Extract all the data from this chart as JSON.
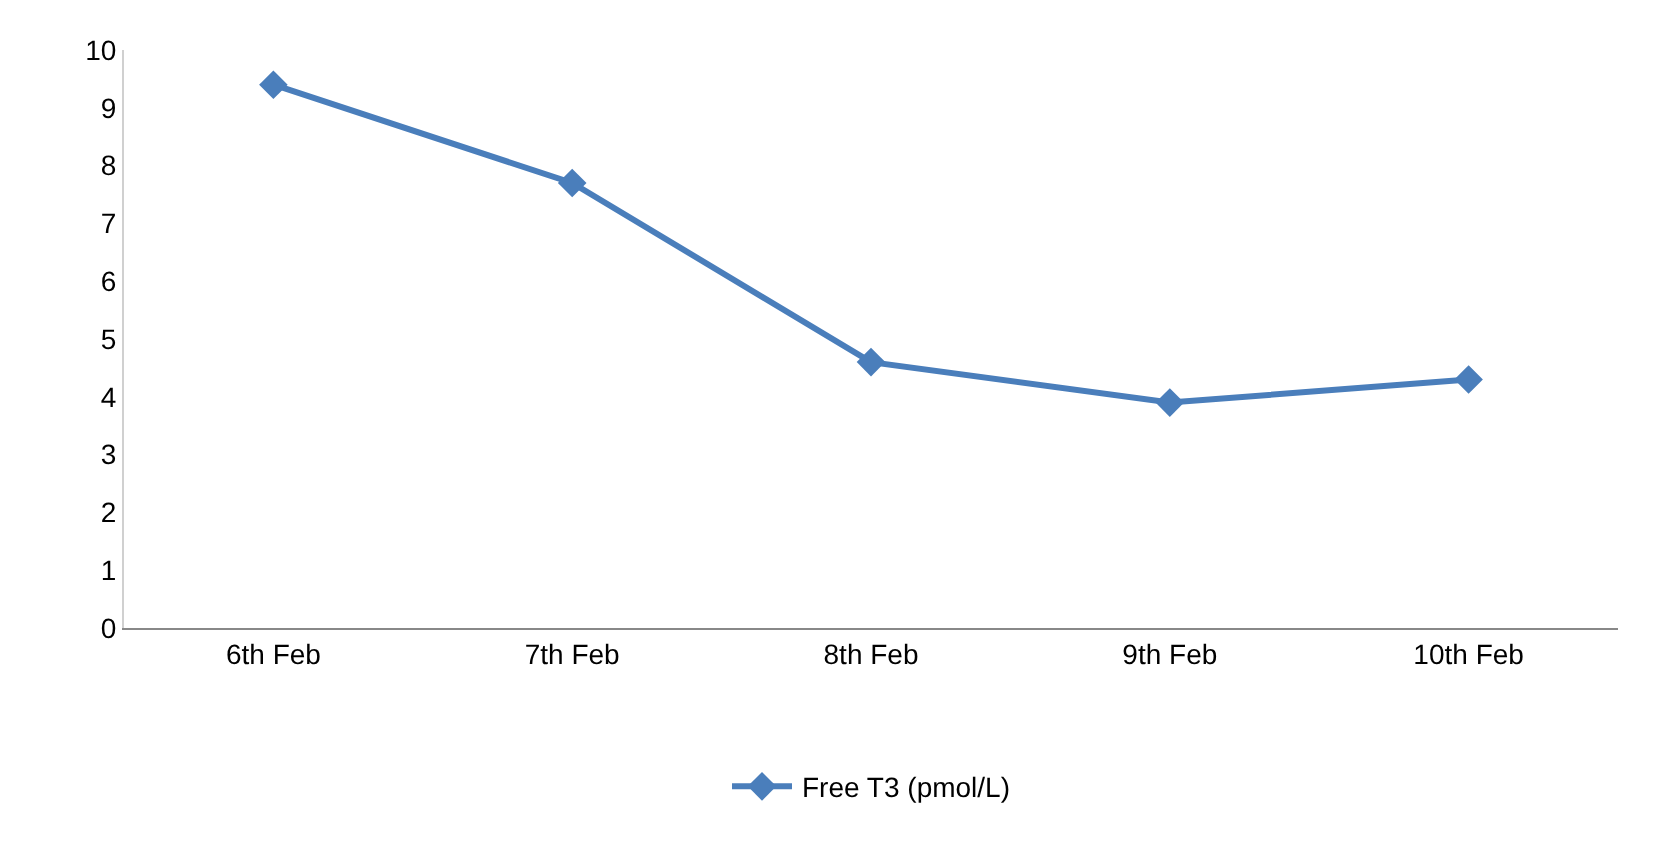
{
  "chart_data": {
    "type": "line",
    "categories": [
      "6th Feb",
      "7th Feb",
      "8th Feb",
      "9th Feb",
      "10th Feb"
    ],
    "series": [
      {
        "name": "Free T3 (pmol/L)",
        "color": "#4a7ebb",
        "values": [
          9.4,
          7.7,
          4.6,
          3.9,
          4.3
        ]
      }
    ],
    "ylim": [
      0,
      10
    ],
    "yticks": [
      0,
      1,
      2,
      3,
      4,
      5,
      6,
      7,
      8,
      9,
      10
    ],
    "grid": false,
    "legend": "bottom",
    "marker": "diamond",
    "line_style": "solid"
  }
}
